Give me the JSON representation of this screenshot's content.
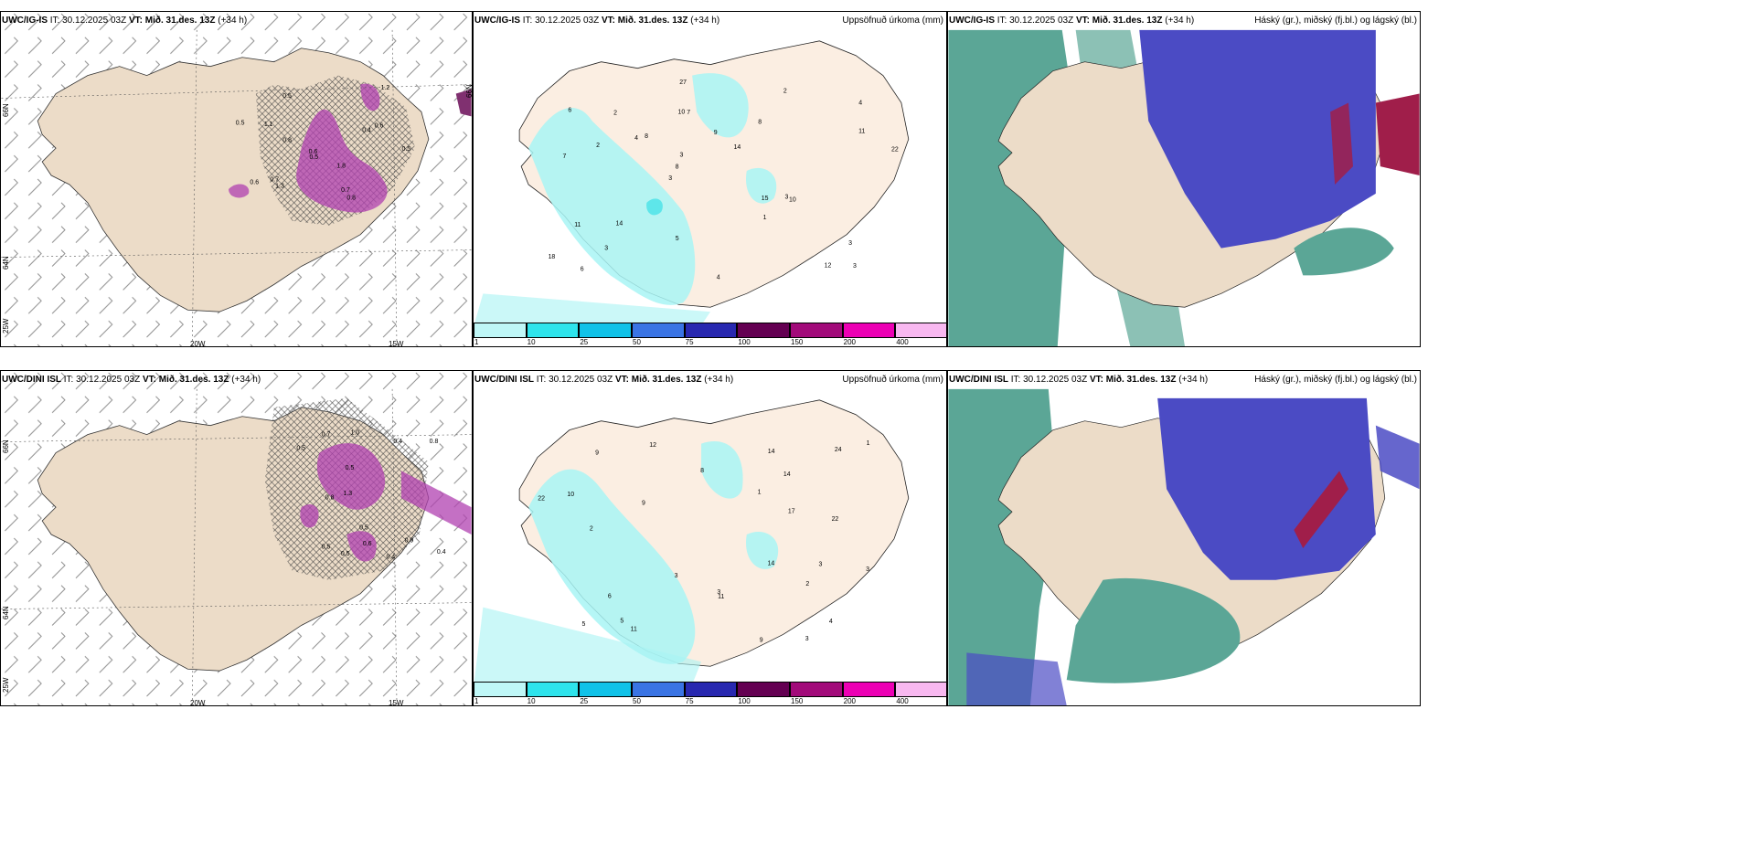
{
  "colors": {
    "land": "#ecdcc8",
    "precip_light": "#a8f4f4",
    "precip_mid": "#5ee6ea",
    "magenta": "#c040c0",
    "cloud_high": "#5ba696",
    "cloud_mid": "#4b4bc4",
    "cloud_low": "#a01e4a",
    "cream": "#fbeee2"
  },
  "rows": [
    {
      "model": "UWC/IG-IS",
      "it": "IT: 30.12.2025 03Z",
      "vt": "VT: Mið. 31.des. 13Z",
      "lead": "(+34 h)"
    },
    {
      "model": "UWC/DINI ISL",
      "it": "IT: 30.12.2025 03Z",
      "vt": "VT: Mið. 31.des. 13Z",
      "lead": "(+34 h)"
    }
  ],
  "precip_title": "Uppsöfnuð úrkoma (mm)",
  "cloud_title": "Háský (gr.), miðský (fj.bl.) og lágský (bl.)",
  "axes": {
    "lat_66": "66N",
    "lat_64": "64N",
    "lon_25": "25W",
    "lon_20": "20W",
    "lon_15": "15W"
  },
  "colorbar": {
    "ticks": [
      "1",
      "10",
      "25",
      "50",
      "75",
      "100",
      "150",
      "200",
      "400"
    ],
    "colors": [
      "#bff7f7",
      "#2ee4ec",
      "#10c2e8",
      "#3a74e4",
      "#2828b0",
      "#640052",
      "#a20a7a",
      "#ec00b4",
      "#f8b8f0"
    ]
  },
  "precip_values_top": [
    "3",
    "7",
    "4",
    "3",
    "8",
    "6",
    "10",
    "9",
    "11",
    "8",
    "18",
    "3",
    "7",
    "14",
    "10",
    "6",
    "27",
    "22",
    "15",
    "11",
    "8",
    "5",
    "3",
    "2",
    "2",
    "14",
    "12",
    "3",
    "3",
    "4",
    "4",
    "2",
    "1"
  ],
  "precip_values_bottom": [
    "3",
    "3",
    "11",
    "5",
    "3",
    "9",
    "12",
    "14",
    "9",
    "22",
    "14",
    "24",
    "22",
    "17",
    "11",
    "9",
    "6",
    "5",
    "14",
    "8",
    "10",
    "3",
    "4",
    "2",
    "1",
    "1",
    "2",
    "3"
  ],
  "wind_values_top": [
    "0.8",
    "0.5",
    "0.7",
    "1.1",
    "0.6",
    "0.7",
    "0.5",
    "0.8",
    "0.5",
    "1.3",
    "0.6",
    "0.5",
    "0.6",
    "1.8",
    "0.4",
    "1.2"
  ],
  "wind_values_bottom": [
    "0.5",
    "0.4",
    "0.5",
    "0.9",
    "0.7",
    "0.5",
    "0.8",
    "0.4",
    "1.0",
    "0.5",
    "0.8",
    "0.6",
    "1.3",
    "0.5",
    "0.4"
  ]
}
